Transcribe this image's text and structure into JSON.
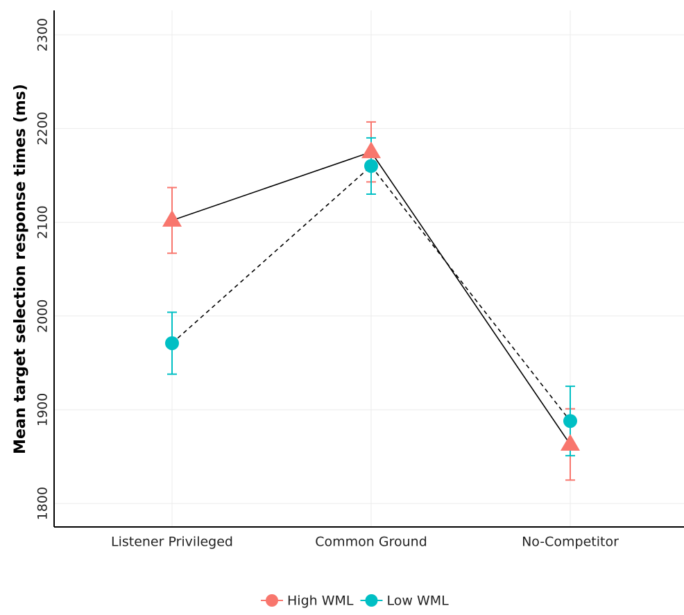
{
  "chart_data": {
    "type": "line",
    "y_label": "Mean target selection response times (ms)",
    "categories": [
      "Listener Privileged",
      "Common Ground",
      "No-Competitor"
    ],
    "series": [
      {
        "name": "High WML",
        "color": "#F8766D",
        "marker": "triangle",
        "line_style": "solid",
        "values": [
          2102,
          2175,
          1863
        ],
        "errors": [
          35,
          32,
          38
        ]
      },
      {
        "name": "Low WML",
        "color": "#00BFC4",
        "marker": "circle",
        "line_style": "dashed",
        "values": [
          1971,
          2160,
          1888
        ],
        "errors": [
          33,
          30,
          37
        ]
      }
    ],
    "ylim": [
      1775,
      2326
    ],
    "yticks": [
      1800,
      1900,
      2000,
      2100,
      2200,
      2300
    ],
    "grid": true,
    "legend": "bottom"
  }
}
